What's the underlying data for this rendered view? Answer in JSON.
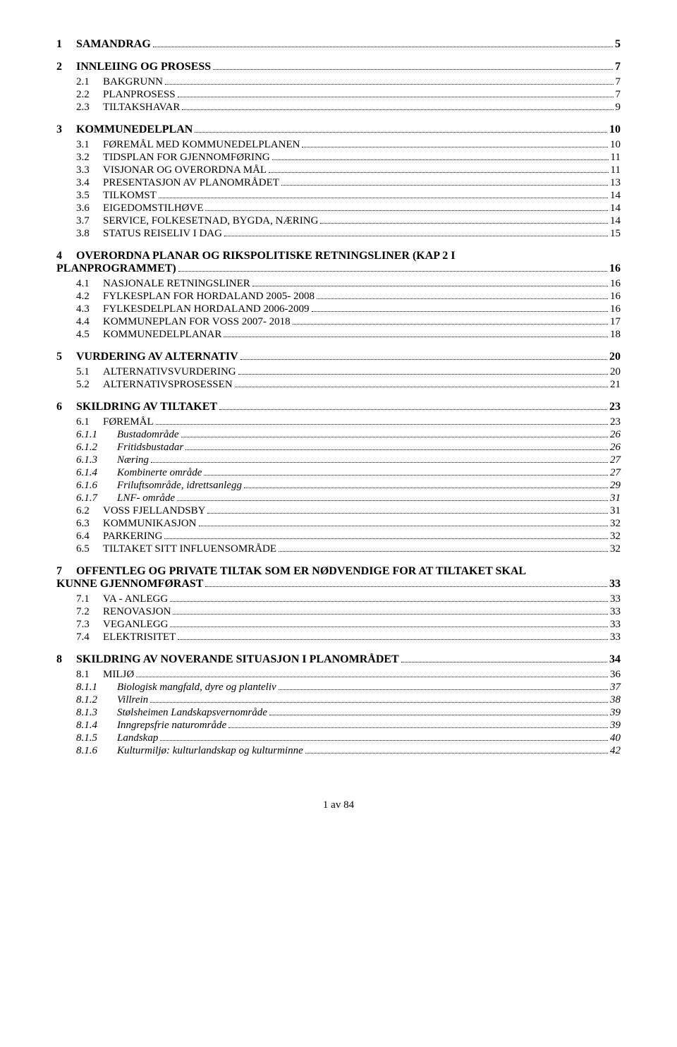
{
  "toc": {
    "entries": [
      {
        "level": 1,
        "num": "1",
        "text": "SAMANDRAG",
        "page": "5"
      },
      {
        "level": 1,
        "num": "2",
        "text": "INNLEIING OG PROSESS",
        "page": "7"
      },
      {
        "level": 2,
        "num": "2.1",
        "text": "BAKGRUNN",
        "page": "7"
      },
      {
        "level": 2,
        "num": "2.2",
        "text": "PLANPROSESS",
        "page": "7"
      },
      {
        "level": 2,
        "num": "2.3",
        "text": "TILTAKSHAVAR",
        "page": "9"
      },
      {
        "level": 1,
        "num": "3",
        "text": "KOMMUNEDELPLAN",
        "page": "10"
      },
      {
        "level": 2,
        "num": "3.1",
        "text": "FØREMÅL MED KOMMUNEDELPLANEN",
        "page": "10"
      },
      {
        "level": 2,
        "num": "3.2",
        "text": "TIDSPLAN FOR GJENNOMFØRING",
        "page": "11"
      },
      {
        "level": 2,
        "num": "3.3",
        "text": "VISJONAR OG OVERORDNA MÅL",
        "page": "11"
      },
      {
        "level": 2,
        "num": "3.4",
        "text": "PRESENTASJON AV PLANOMRÅDET",
        "page": "13"
      },
      {
        "level": 2,
        "num": "3.5",
        "text": "TILKOMST",
        "page": "14"
      },
      {
        "level": 2,
        "num": "3.6",
        "text": "EIGEDOMSTILHØVE",
        "page": "14"
      },
      {
        "level": 2,
        "num": "3.7",
        "text": "SERVICE, FOLKESETNAD, BYGDA, NÆRING",
        "page": "14"
      },
      {
        "level": 2,
        "num": "3.8",
        "text": "STATUS REISELIV I DAG",
        "page": "15"
      },
      {
        "level": 1,
        "num": "4",
        "text_line1": "OVERORDNA PLANAR OG RIKSPOLITISKE RETNINGSLINER   (KAP 2 I",
        "text_line2": "PLANPROGRAMMET)",
        "page": "16",
        "multiline": true
      },
      {
        "level": 2,
        "num": "4.1",
        "text": "NASJONALE RETNINGSLINER",
        "page": "16"
      },
      {
        "level": 2,
        "num": "4.2",
        "text": "FYLKESPLAN FOR HORDALAND 2005- 2008",
        "page": "16"
      },
      {
        "level": 2,
        "num": "4.3",
        "text": "FYLKESDELPLAN HORDALAND 2006-2009",
        "page": "16"
      },
      {
        "level": 2,
        "num": "4.4",
        "text": "KOMMUNEPLAN FOR VOSS 2007- 2018",
        "page": "17"
      },
      {
        "level": 2,
        "num": "4.5",
        "text": "KOMMUNEDELPLANAR",
        "page": "18"
      },
      {
        "level": 1,
        "num": "5",
        "text": "VURDERING AV ALTERNATIV",
        "page": "20"
      },
      {
        "level": 2,
        "num": "5.1",
        "text": "ALTERNATIVSVURDERING",
        "page": "20"
      },
      {
        "level": 2,
        "num": "5.2",
        "text": "ALTERNATIVSPROSESSEN",
        "page": "21"
      },
      {
        "level": 1,
        "num": "6",
        "text": "SKILDRING AV TILTAKET",
        "page": "23"
      },
      {
        "level": 2,
        "num": "6.1",
        "text": "FØREMÅL",
        "page": "23"
      },
      {
        "level": 3,
        "num": "6.1.1",
        "text": "Bustadområde",
        "page": "26"
      },
      {
        "level": 3,
        "num": "6.1.2",
        "text": "Fritidsbustadar",
        "page": "26"
      },
      {
        "level": 3,
        "num": "6.1.3",
        "text": "Næring",
        "page": "27"
      },
      {
        "level": 3,
        "num": "6.1.4",
        "text": "Kombinerte område",
        "page": "27"
      },
      {
        "level": 3,
        "num": "6.1.6",
        "text": "Friluftsområde, idrettsanlegg",
        "page": "29"
      },
      {
        "level": 3,
        "num": "6.1.7",
        "text": "LNF- område",
        "page": "31"
      },
      {
        "level": 2,
        "num": "6.2",
        "text": "VOSS FJELLANDSBY",
        "page": "31"
      },
      {
        "level": 2,
        "num": "6.3",
        "text": "KOMMUNIKASJON",
        "page": "32"
      },
      {
        "level": 2,
        "num": "6.4",
        "text": "PARKERING",
        "page": "32"
      },
      {
        "level": 2,
        "num": "6.5",
        "text": "TILTAKET SITT INFLUENSOMRÅDE",
        "page": "32"
      },
      {
        "level": 1,
        "num": "7",
        "text_line1": "OFFENTLEG OG PRIVATE TILTAK SOM ER NØDVENDIGE FOR AT TILTAKET SKAL",
        "text_line2": "KUNNE GJENNOMFØRAST",
        "page": "33",
        "multiline": true
      },
      {
        "level": 2,
        "num": "7.1",
        "text": "VA - ANLEGG",
        "page": "33"
      },
      {
        "level": 2,
        "num": "7.2",
        "text": "RENOVASJON",
        "page": "33"
      },
      {
        "level": 2,
        "num": "7.3",
        "text": "VEGANLEGG",
        "page": "33"
      },
      {
        "level": 2,
        "num": "7.4",
        "text": "ELEKTRISITET",
        "page": "33"
      },
      {
        "level": 1,
        "num": "8",
        "text": "SKILDRING AV NOVERANDE SITUASJON I PLANOMRÅDET",
        "page": "34"
      },
      {
        "level": 2,
        "num": "8.1",
        "text": "MILJØ",
        "page": "36"
      },
      {
        "level": 3,
        "num": "8.1.1",
        "text": "Biologisk mangfald, dyre og planteliv",
        "page": "37"
      },
      {
        "level": 3,
        "num": "8.1.2",
        "text": "Villrein",
        "page": "38"
      },
      {
        "level": 3,
        "num": "8.1.3",
        "text": "Stølsheimen Landskapsvernområde",
        "page": "39"
      },
      {
        "level": 3,
        "num": "8.1.4",
        "text": "Inngrepsfrie naturområde",
        "page": "39"
      },
      {
        "level": 3,
        "num": "8.1.5",
        "text": "Landskap",
        "page": "40"
      },
      {
        "level": 3,
        "num": "8.1.6",
        "text": "Kulturmiljø: kulturlandskap og kulturminne",
        "page": "42"
      }
    ]
  },
  "footer": "1 av 84",
  "colors": {
    "text": "#000000",
    "background": "#ffffff"
  },
  "typography": {
    "font_family": "Times New Roman",
    "level1_fontsize": 16,
    "level2_fontsize": 15,
    "level3_fontsize": 15
  }
}
